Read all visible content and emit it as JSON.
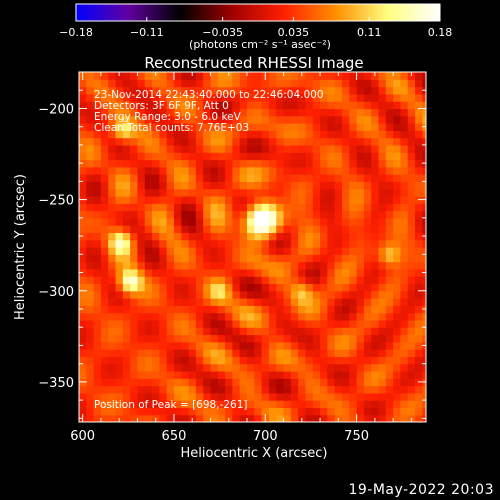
{
  "footer_date": "19-May-2022 20:03",
  "chart_data": {
    "type": "heatmap",
    "title": "Reconstructed RHESSI Image",
    "xlabel": "Heliocentric X (arcsec)",
    "ylabel": "Heliocentric Y (arcsec)",
    "xlim": [
      598,
      788
    ],
    "ylim": [
      -372,
      -180
    ],
    "x_ticks": [
      600,
      650,
      700,
      750
    ],
    "y_ticks": [
      -200,
      -250,
      -300,
      -350
    ],
    "x_tick_labels": [
      "600",
      "650",
      "700",
      "750"
    ],
    "y_tick_labels": [
      "−200",
      "−250",
      "−300",
      "−350"
    ],
    "colorbar": {
      "range": [
        -0.18,
        0.18
      ],
      "ticks": [
        -0.18,
        -0.11,
        -0.035,
        0.035,
        0.11,
        0.18
      ],
      "tick_labels": [
        "−0.18",
        "−0.11",
        "−0.035",
        "0.035",
        "0.11",
        "0.18"
      ],
      "unit_label": "(photons cm⁻² s⁻¹ asec⁻²)",
      "stops": [
        "#0000ff",
        "#6000a0",
        "#000000",
        "#a00000",
        "#ff2000",
        "#ff9000",
        "#ffff80",
        "#ffffff"
      ]
    },
    "annotations": [
      "23-Nov-2014 22:43:40.000 to 22:46:04.000",
      "Detectors: 3F 6F 9F, Att 0",
      "Energy Range: 3.0 - 6.0 keV",
      "Clean    Total counts: 7.76E+03"
    ],
    "peak_label": "Position of Peak = [698,-261]",
    "peak": {
      "x": 698,
      "y": -261,
      "value": 0.18
    },
    "secondary_sources": [
      {
        "x": 626,
        "y": -295,
        "value": 0.13
      },
      {
        "x": 621,
        "y": -273,
        "value": 0.1
      },
      {
        "x": 622,
        "y": -212,
        "value": 0.09
      },
      {
        "x": 768,
        "y": -280,
        "value": 0.08
      },
      {
        "x": 720,
        "y": -300,
        "value": 0.07
      },
      {
        "x": 675,
        "y": -300,
        "value": 0.06
      }
    ],
    "grid": false
  }
}
